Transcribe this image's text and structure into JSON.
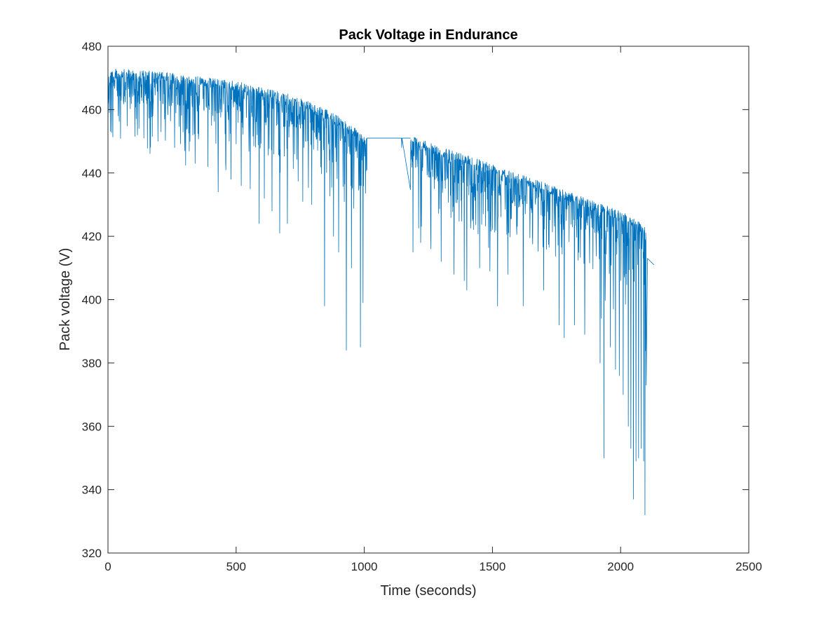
{
  "chart_data": {
    "type": "line",
    "title": "Pack Voltage in Endurance",
    "xlabel": "Time (seconds)",
    "ylabel": "Pack voltage (V)",
    "xlim": [
      0,
      2500
    ],
    "ylim": [
      320,
      480
    ],
    "xticks": [
      0,
      500,
      1000,
      1500,
      2000,
      2500
    ],
    "yticks": [
      320,
      340,
      360,
      380,
      400,
      420,
      440,
      460,
      480
    ],
    "grid": false,
    "legend": "none",
    "line_color": "#0072BD",
    "series": [
      {
        "baseline": [
          [
            0,
            473
          ],
          [
            100,
            472.6
          ],
          [
            200,
            472
          ],
          [
            300,
            471
          ],
          [
            400,
            470
          ],
          [
            500,
            469
          ],
          [
            600,
            467
          ],
          [
            700,
            465
          ],
          [
            800,
            462
          ],
          [
            900,
            458
          ],
          [
            950,
            455
          ],
          [
            1000,
            452
          ],
          [
            1010,
            451
          ]
        ],
        "sampling": "approximately every 1 s",
        "plateau": [
          [
            1010,
            451
          ],
          [
            1180,
            451
          ]
        ],
        "dips": [
          [
            5,
            459
          ],
          [
            40,
            458
          ],
          [
            115,
            452
          ],
          [
            140,
            451
          ],
          [
            195,
            450
          ],
          [
            260,
            448
          ],
          [
            300,
            447
          ],
          [
            340,
            443
          ],
          [
            390,
            442
          ],
          [
            430,
            434
          ],
          [
            480,
            438
          ],
          [
            520,
            436
          ],
          [
            555,
            435
          ],
          [
            590,
            424
          ],
          [
            610,
            432
          ],
          [
            640,
            428
          ],
          [
            670,
            421
          ],
          [
            700,
            424
          ],
          [
            760,
            431
          ],
          [
            795,
            430
          ],
          [
            845,
            398
          ],
          [
            880,
            420
          ],
          [
            900,
            415
          ],
          [
            930,
            384
          ],
          [
            950,
            410
          ],
          [
            985,
            385
          ],
          [
            995,
            399
          ]
        ],
        "baseline_2": [
          [
            1180,
            452
          ],
          [
            1300,
            448
          ],
          [
            1400,
            446
          ],
          [
            1500,
            443
          ],
          [
            1600,
            440
          ],
          [
            1700,
            437
          ],
          [
            1800,
            434
          ],
          [
            1900,
            431
          ],
          [
            2000,
            428
          ],
          [
            2050,
            426
          ],
          [
            2100,
            423
          ]
        ],
        "dips_2": [
          [
            1190,
            415
          ],
          [
            1220,
            418
          ],
          [
            1260,
            416
          ],
          [
            1300,
            412
          ],
          [
            1350,
            408
          ],
          [
            1390,
            406
          ],
          [
            1400,
            403
          ],
          [
            1450,
            410
          ],
          [
            1490,
            409
          ],
          [
            1520,
            398
          ],
          [
            1560,
            408
          ],
          [
            1620,
            398
          ],
          [
            1700,
            403
          ],
          [
            1760,
            392
          ],
          [
            1780,
            388
          ],
          [
            1820,
            392
          ],
          [
            1860,
            389
          ],
          [
            1920,
            380
          ],
          [
            1935,
            350
          ],
          [
            1960,
            385
          ],
          [
            1980,
            378
          ],
          [
            1995,
            376
          ],
          [
            2010,
            370
          ],
          [
            2030,
            360
          ],
          [
            2040,
            353
          ],
          [
            2050,
            337
          ],
          [
            2060,
            349
          ],
          [
            2070,
            350
          ],
          [
            2080,
            353
          ],
          [
            2090,
            349
          ],
          [
            2095,
            332
          ],
          [
            2100,
            373
          ]
        ],
        "tail": [
          [
            2105,
            413
          ],
          [
            2130,
            411
          ]
        ]
      }
    ]
  }
}
